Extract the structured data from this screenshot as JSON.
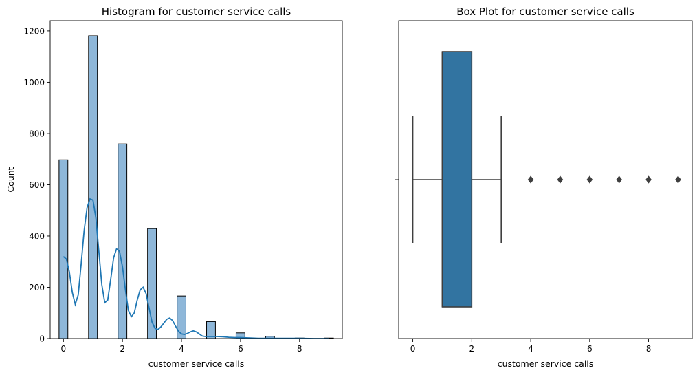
{
  "chart_data": [
    {
      "type": "bar",
      "subtype": "histogram_with_kde",
      "title": "Histogram for customer service calls",
      "xlabel": "customer service calls",
      "ylabel": "Count",
      "xlim": [
        -0.45,
        9.45
      ],
      "ylim": [
        0,
        1240
      ],
      "xticks": [
        0,
        2,
        4,
        6,
        8
      ],
      "yticks": [
        0,
        200,
        400,
        600,
        800,
        1000,
        1200
      ],
      "bin_width": 0.3,
      "bins": [
        {
          "x": 0,
          "count": 697
        },
        {
          "x": 1,
          "count": 1181
        },
        {
          "x": 2,
          "count": 759
        },
        {
          "x": 3,
          "count": 429
        },
        {
          "x": 4,
          "count": 166
        },
        {
          "x": 5,
          "count": 66
        },
        {
          "x": 6,
          "count": 22
        },
        {
          "x": 7,
          "count": 9
        },
        {
          "x": 8,
          "count": 2
        },
        {
          "x": 9,
          "count": 2
        }
      ],
      "kde": {
        "x": [
          0,
          0.1,
          0.2,
          0.3,
          0.4,
          0.5,
          0.6,
          0.7,
          0.8,
          0.9,
          1.0,
          1.1,
          1.2,
          1.3,
          1.4,
          1.5,
          1.6,
          1.7,
          1.8,
          1.9,
          2.0,
          2.1,
          2.2,
          2.3,
          2.4,
          2.5,
          2.6,
          2.7,
          2.8,
          2.9,
          3.0,
          3.1,
          3.2,
          3.3,
          3.4,
          3.5,
          3.6,
          3.7,
          3.8,
          3.9,
          4.0,
          4.1,
          4.2,
          4.3,
          4.4,
          4.5,
          4.6,
          4.7,
          4.8,
          4.9,
          5.0,
          5.2,
          5.4,
          5.6,
          5.8,
          6.0,
          6.2,
          6.4,
          6.6,
          6.8,
          7.0,
          7.5,
          8.0,
          8.5,
          9.0
        ],
        "y": [
          320,
          310,
          260,
          180,
          133,
          170,
          290,
          420,
          510,
          545,
          540,
          470,
          340,
          210,
          140,
          150,
          230,
          315,
          350,
          340,
          280,
          190,
          110,
          85,
          100,
          150,
          190,
          200,
          175,
          120,
          65,
          40,
          35,
          45,
          60,
          75,
          80,
          70,
          48,
          28,
          18,
          16,
          20,
          26,
          30,
          26,
          18,
          10,
          8,
          8,
          8,
          8,
          7,
          5,
          4,
          4,
          3,
          2,
          1,
          1,
          1,
          1,
          1,
          0,
          0
        ],
        "color": "#1f77b4"
      },
      "bar_color": "#8eb7d9",
      "edge_color": "#000000"
    },
    {
      "type": "box",
      "title": "Box Plot for customer service calls",
      "xlabel": "customer service calls",
      "xlim": [
        -0.48,
        9.48
      ],
      "xticks": [
        0,
        2,
        4,
        6,
        8
      ],
      "whisker_low": 0,
      "q1": 1,
      "median": 1,
      "q3": 2,
      "whisker_high": 3,
      "outliers": [
        4,
        5,
        6,
        7,
        8,
        9
      ],
      "box_color": "#3274a1",
      "line_color": "#3f3f3f"
    }
  ]
}
